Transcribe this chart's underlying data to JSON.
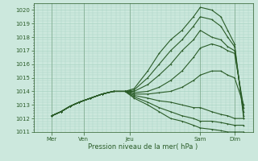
{
  "xlabel": "Pression niveau de la mer( hPa )",
  "ylabel": "",
  "ylim": [
    1011,
    1020.5
  ],
  "yticks": [
    1011,
    1012,
    1013,
    1014,
    1015,
    1016,
    1017,
    1018,
    1019,
    1020
  ],
  "xtick_labels": [
    "Mer",
    "Ven",
    "Jeu",
    "Sam",
    "Dim"
  ],
  "xtick_positions": [
    0.08,
    0.22,
    0.42,
    0.73,
    0.88
  ],
  "bg_color": "#cce8dd",
  "grid_color": "#aad4c4",
  "line_color": "#2a5c28",
  "line_width": 0.8,
  "figw": 3.2,
  "figh": 2.0,
  "dpi": 100,
  "lines": [
    {
      "x": [
        0.08,
        0.12,
        0.16,
        0.2,
        0.25,
        0.3,
        0.35,
        0.4,
        0.44,
        0.5,
        0.55,
        0.6,
        0.65,
        0.7,
        0.73,
        0.78,
        0.82,
        0.85,
        0.88,
        0.92
      ],
      "y": [
        1012.2,
        1012.5,
        1012.9,
        1013.2,
        1013.5,
        1013.8,
        1014.0,
        1014.0,
        1014.2,
        1015.5,
        1016.8,
        1017.8,
        1018.5,
        1019.5,
        1020.2,
        1020.0,
        1019.5,
        1018.5,
        1017.5,
        1012.0
      ]
    },
    {
      "x": [
        0.08,
        0.12,
        0.16,
        0.2,
        0.25,
        0.3,
        0.35,
        0.4,
        0.44,
        0.5,
        0.55,
        0.6,
        0.65,
        0.7,
        0.73,
        0.78,
        0.82,
        0.85,
        0.88,
        0.92
      ],
      "y": [
        1012.2,
        1012.5,
        1012.9,
        1013.2,
        1013.5,
        1013.8,
        1014.0,
        1014.0,
        1014.1,
        1015.0,
        1016.0,
        1017.0,
        1017.8,
        1018.8,
        1019.5,
        1019.3,
        1018.8,
        1018.0,
        1017.3,
        1012.2
      ]
    },
    {
      "x": [
        0.08,
        0.12,
        0.16,
        0.2,
        0.25,
        0.3,
        0.35,
        0.4,
        0.44,
        0.5,
        0.55,
        0.6,
        0.65,
        0.7,
        0.73,
        0.78,
        0.82,
        0.85,
        0.88,
        0.92
      ],
      "y": [
        1012.2,
        1012.5,
        1012.9,
        1013.2,
        1013.5,
        1013.8,
        1014.0,
        1014.0,
        1014.0,
        1014.5,
        1015.2,
        1016.0,
        1017.0,
        1017.8,
        1018.5,
        1018.0,
        1017.8,
        1017.3,
        1017.0,
        1012.5
      ]
    },
    {
      "x": [
        0.08,
        0.12,
        0.16,
        0.2,
        0.25,
        0.3,
        0.35,
        0.4,
        0.44,
        0.5,
        0.55,
        0.6,
        0.65,
        0.7,
        0.73,
        0.78,
        0.82,
        0.85,
        0.88,
        0.92
      ],
      "y": [
        1012.2,
        1012.5,
        1012.9,
        1013.2,
        1013.5,
        1013.8,
        1014.0,
        1014.0,
        1013.9,
        1014.0,
        1014.3,
        1014.8,
        1015.5,
        1016.5,
        1017.2,
        1017.5,
        1017.3,
        1017.0,
        1016.8,
        1012.8
      ]
    },
    {
      "x": [
        0.08,
        0.12,
        0.16,
        0.2,
        0.25,
        0.3,
        0.35,
        0.4,
        0.44,
        0.5,
        0.55,
        0.6,
        0.65,
        0.7,
        0.73,
        0.78,
        0.82,
        0.85,
        0.88,
        0.92
      ],
      "y": [
        1012.2,
        1012.5,
        1012.9,
        1013.2,
        1013.5,
        1013.8,
        1014.0,
        1014.0,
        1013.8,
        1013.8,
        1013.9,
        1014.0,
        1014.3,
        1014.8,
        1015.2,
        1015.5,
        1015.5,
        1015.2,
        1015.0,
        1013.0
      ]
    },
    {
      "x": [
        0.08,
        0.12,
        0.16,
        0.2,
        0.25,
        0.3,
        0.35,
        0.4,
        0.44,
        0.5,
        0.55,
        0.6,
        0.65,
        0.7,
        0.73,
        0.78,
        0.82,
        0.85,
        0.88,
        0.92
      ],
      "y": [
        1012.2,
        1012.5,
        1012.9,
        1013.2,
        1013.5,
        1013.8,
        1014.0,
        1014.0,
        1013.7,
        1013.5,
        1013.3,
        1013.2,
        1013.0,
        1012.8,
        1012.8,
        1012.5,
        1012.3,
        1012.2,
        1012.0,
        1012.0
      ]
    },
    {
      "x": [
        0.08,
        0.12,
        0.16,
        0.2,
        0.25,
        0.3,
        0.35,
        0.4,
        0.44,
        0.5,
        0.55,
        0.6,
        0.65,
        0.7,
        0.73,
        0.78,
        0.82,
        0.85,
        0.88,
        0.92
      ],
      "y": [
        1012.2,
        1012.5,
        1012.9,
        1013.2,
        1013.5,
        1013.8,
        1014.0,
        1014.0,
        1013.6,
        1013.2,
        1012.8,
        1012.5,
        1012.2,
        1012.0,
        1011.8,
        1011.8,
        1011.7,
        1011.6,
        1011.5,
        1011.5
      ]
    },
    {
      "x": [
        0.08,
        0.12,
        0.16,
        0.2,
        0.25,
        0.3,
        0.35,
        0.4,
        0.44,
        0.5,
        0.55,
        0.6,
        0.65,
        0.7,
        0.73,
        0.78,
        0.82,
        0.85,
        0.88,
        0.92
      ],
      "y": [
        1012.2,
        1012.5,
        1012.9,
        1013.2,
        1013.5,
        1013.8,
        1014.0,
        1014.0,
        1013.5,
        1013.0,
        1012.5,
        1012.0,
        1011.8,
        1011.5,
        1011.3,
        1011.2,
        1011.1,
        1011.0,
        1011.0,
        1011.0
      ]
    }
  ],
  "vlines": [
    0.08,
    0.22,
    0.42,
    0.73,
    0.88
  ],
  "xlim": [
    0.0,
    0.96
  ]
}
